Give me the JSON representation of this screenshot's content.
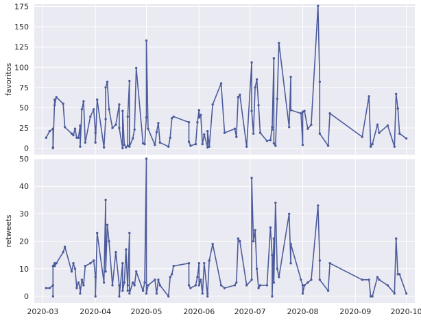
{
  "chart_data": [
    {
      "type": "line",
      "ylabel": "favoritos",
      "xlabel": "",
      "ylim": [
        -8,
        178
      ],
      "xlim": [
        "2020-02-25",
        "2020-10-06"
      ],
      "yticks": [
        0,
        25,
        50,
        75,
        100,
        125,
        150,
        175
      ],
      "xticks": [],
      "grid": true,
      "series": [
        {
          "x": [
            "2020-03-03",
            "2020-03-05",
            "2020-03-07",
            "2020-03-07",
            "2020-03-07",
            "2020-03-08",
            "2020-03-08",
            "2020-03-09",
            "2020-03-13",
            "2020-03-14",
            "2020-03-18",
            "2020-03-19",
            "2020-03-20",
            "2020-03-21",
            "2020-03-22",
            "2020-03-23",
            "2020-03-23",
            "2020-03-24",
            "2020-03-25",
            "2020-03-26",
            "2020-03-29",
            "2020-03-31",
            "2020-04-01",
            "2020-04-01",
            "2020-04-02",
            "2020-04-06",
            "2020-04-07",
            "2020-04-07",
            "2020-04-08",
            "2020-04-09",
            "2020-04-11",
            "2020-04-13",
            "2020-04-15",
            "2020-04-15",
            "2020-04-17",
            "2020-04-17",
            "2020-04-18",
            "2020-04-19",
            "2020-04-20",
            "2020-04-20",
            "2020-04-21",
            "2020-04-21",
            "2020-04-23",
            "2020-04-24",
            "2020-04-25",
            "2020-04-29",
            "2020-04-30",
            "2020-05-01",
            "2020-05-01",
            "2020-05-02",
            "2020-05-06",
            "2020-05-07",
            "2020-05-08",
            "2020-05-09",
            "2020-05-14",
            "2020-05-15",
            "2020-05-16",
            "2020-05-17",
            "2020-05-26",
            "2020-05-26",
            "2020-05-27",
            "2020-05-30",
            "2020-05-31",
            "2020-06-01",
            "2020-06-01",
            "2020-06-02",
            "2020-06-03",
            "2020-06-04",
            "2020-06-06",
            "2020-06-06",
            "2020-06-07",
            "2020-06-09",
            "2020-06-14",
            "2020-06-16",
            "2020-06-22",
            "2020-06-23",
            "2020-06-24",
            "2020-06-25",
            "2020-06-29",
            "2020-07-02",
            "2020-07-02",
            "2020-07-03",
            "2020-07-04",
            "2020-07-05",
            "2020-07-06",
            "2020-07-07",
            "2020-07-11",
            "2020-07-13",
            "2020-07-14",
            "2020-07-14",
            "2020-07-15",
            "2020-07-15",
            "2020-07-16",
            "2020-07-17",
            "2020-07-18",
            "2020-07-24",
            "2020-07-25",
            "2020-07-25",
            "2020-07-31",
            "2020-08-01",
            "2020-08-01",
            "2020-08-02",
            "2020-08-04",
            "2020-08-06",
            "2020-08-10",
            "2020-08-11",
            "2020-08-11",
            "2020-08-16",
            "2020-08-17",
            "2020-09-05",
            "2020-09-09",
            "2020-09-10",
            "2020-09-11",
            "2020-09-14",
            "2020-09-15",
            "2020-09-20",
            "2020-09-24",
            "2020-09-25",
            "2020-09-26",
            "2020-09-27",
            "2020-10-01"
          ],
          "y": [
            13,
            21,
            24,
            1,
            0,
            60,
            53,
            63,
            55,
            26,
            18,
            16,
            24,
            13,
            13,
            28,
            2,
            48,
            58,
            7,
            39,
            48,
            19,
            7,
            60,
            1,
            36,
            75,
            82,
            48,
            25,
            29,
            54,
            25,
            0,
            46,
            4,
            1,
            3,
            39,
            83,
            2,
            12,
            23,
            99,
            6,
            5,
            38,
            133,
            24,
            4,
            20,
            31,
            7,
            2,
            13,
            37,
            39,
            32,
            8,
            3,
            5,
            32,
            47,
            38,
            41,
            5,
            17,
            1,
            21,
            2,
            54,
            80,
            19,
            24,
            14,
            63,
            66,
            2,
            106,
            46,
            18,
            75,
            85,
            53,
            19,
            9,
            10,
            26,
            23,
            111,
            6,
            3,
            61,
            130,
            26,
            88,
            47,
            43,
            4,
            45,
            46,
            24,
            29,
            176,
            82,
            18,
            3,
            43,
            14,
            64,
            2,
            5,
            29,
            19,
            28,
            2,
            67,
            49,
            18,
            12
          ]
        }
      ]
    },
    {
      "type": "line",
      "ylabel": "retweets",
      "xlabel": "",
      "ylim": [
        -2.5,
        50
      ],
      "xlim": [
        "2020-02-25",
        "2020-10-06"
      ],
      "yticks": [
        0,
        10,
        20,
        30,
        40,
        50
      ],
      "xticks": [
        "2020-03",
        "2020-04",
        "2020-05",
        "2020-06",
        "2020-07",
        "2020-08",
        "2020-09",
        "2020-10"
      ],
      "grid": true,
      "series": [
        {
          "x": [
            "2020-03-03",
            "2020-03-05",
            "2020-03-07",
            "2020-03-07",
            "2020-03-07",
            "2020-03-08",
            "2020-03-08",
            "2020-03-09",
            "2020-03-13",
            "2020-03-14",
            "2020-03-18",
            "2020-03-19",
            "2020-03-20",
            "2020-03-21",
            "2020-03-22",
            "2020-03-23",
            "2020-03-23",
            "2020-03-24",
            "2020-03-25",
            "2020-03-26",
            "2020-03-29",
            "2020-03-31",
            "2020-04-01",
            "2020-04-01",
            "2020-04-02",
            "2020-04-06",
            "2020-04-07",
            "2020-04-07",
            "2020-04-08",
            "2020-04-09",
            "2020-04-11",
            "2020-04-13",
            "2020-04-15",
            "2020-04-15",
            "2020-04-17",
            "2020-04-17",
            "2020-04-18",
            "2020-04-19",
            "2020-04-20",
            "2020-04-20",
            "2020-04-21",
            "2020-04-21",
            "2020-04-23",
            "2020-04-24",
            "2020-04-25",
            "2020-04-29",
            "2020-04-30",
            "2020-05-01",
            "2020-05-01",
            "2020-05-02",
            "2020-05-06",
            "2020-05-07",
            "2020-05-08",
            "2020-05-09",
            "2020-05-14",
            "2020-05-15",
            "2020-05-16",
            "2020-05-17",
            "2020-05-26",
            "2020-05-26",
            "2020-05-27",
            "2020-05-30",
            "2020-05-31",
            "2020-06-01",
            "2020-06-01",
            "2020-06-02",
            "2020-06-03",
            "2020-06-04",
            "2020-06-06",
            "2020-06-06",
            "2020-06-07",
            "2020-06-09",
            "2020-06-14",
            "2020-06-16",
            "2020-06-22",
            "2020-06-23",
            "2020-06-24",
            "2020-06-25",
            "2020-06-29",
            "2020-07-02",
            "2020-07-02",
            "2020-07-03",
            "2020-07-04",
            "2020-07-05",
            "2020-07-06",
            "2020-07-07",
            "2020-07-11",
            "2020-07-13",
            "2020-07-14",
            "2020-07-14",
            "2020-07-15",
            "2020-07-15",
            "2020-07-16",
            "2020-07-17",
            "2020-07-18",
            "2020-07-24",
            "2020-07-25",
            "2020-07-25",
            "2020-07-31",
            "2020-08-01",
            "2020-08-01",
            "2020-08-02",
            "2020-08-04",
            "2020-08-06",
            "2020-08-10",
            "2020-08-11",
            "2020-08-11",
            "2020-08-16",
            "2020-08-17",
            "2020-09-05",
            "2020-09-09",
            "2020-09-10",
            "2020-09-11",
            "2020-09-14",
            "2020-09-15",
            "2020-09-20",
            "2020-09-24",
            "2020-09-25",
            "2020-09-26",
            "2020-09-27",
            "2020-10-01"
          ],
          "y": [
            3,
            3,
            4,
            0,
            11,
            12,
            11,
            12,
            16,
            18,
            9,
            12,
            10,
            3,
            5,
            3,
            1,
            6,
            4,
            11,
            12,
            13,
            7,
            0,
            23,
            5,
            35,
            9,
            26,
            20,
            4,
            16,
            4,
            0,
            12,
            2,
            5,
            17,
            2,
            4,
            23,
            1,
            5,
            4,
            9,
            2,
            5,
            50,
            1,
            4,
            6,
            1,
            6,
            4,
            0,
            7,
            8,
            11,
            12,
            4,
            3,
            4,
            7,
            12,
            4,
            6,
            1,
            12,
            0,
            1,
            13,
            19,
            4,
            3,
            4,
            5,
            21,
            20,
            4,
            6,
            43,
            20,
            24,
            10,
            3,
            4,
            4,
            25,
            15,
            0,
            21,
            5,
            34,
            10,
            7,
            30,
            12,
            19,
            6,
            4,
            1,
            4,
            5,
            6,
            33,
            13,
            6,
            2,
            12,
            6,
            6,
            0,
            0,
            7,
            6,
            4,
            1,
            21,
            8,
            8,
            1
          ]
        }
      ]
    }
  ]
}
